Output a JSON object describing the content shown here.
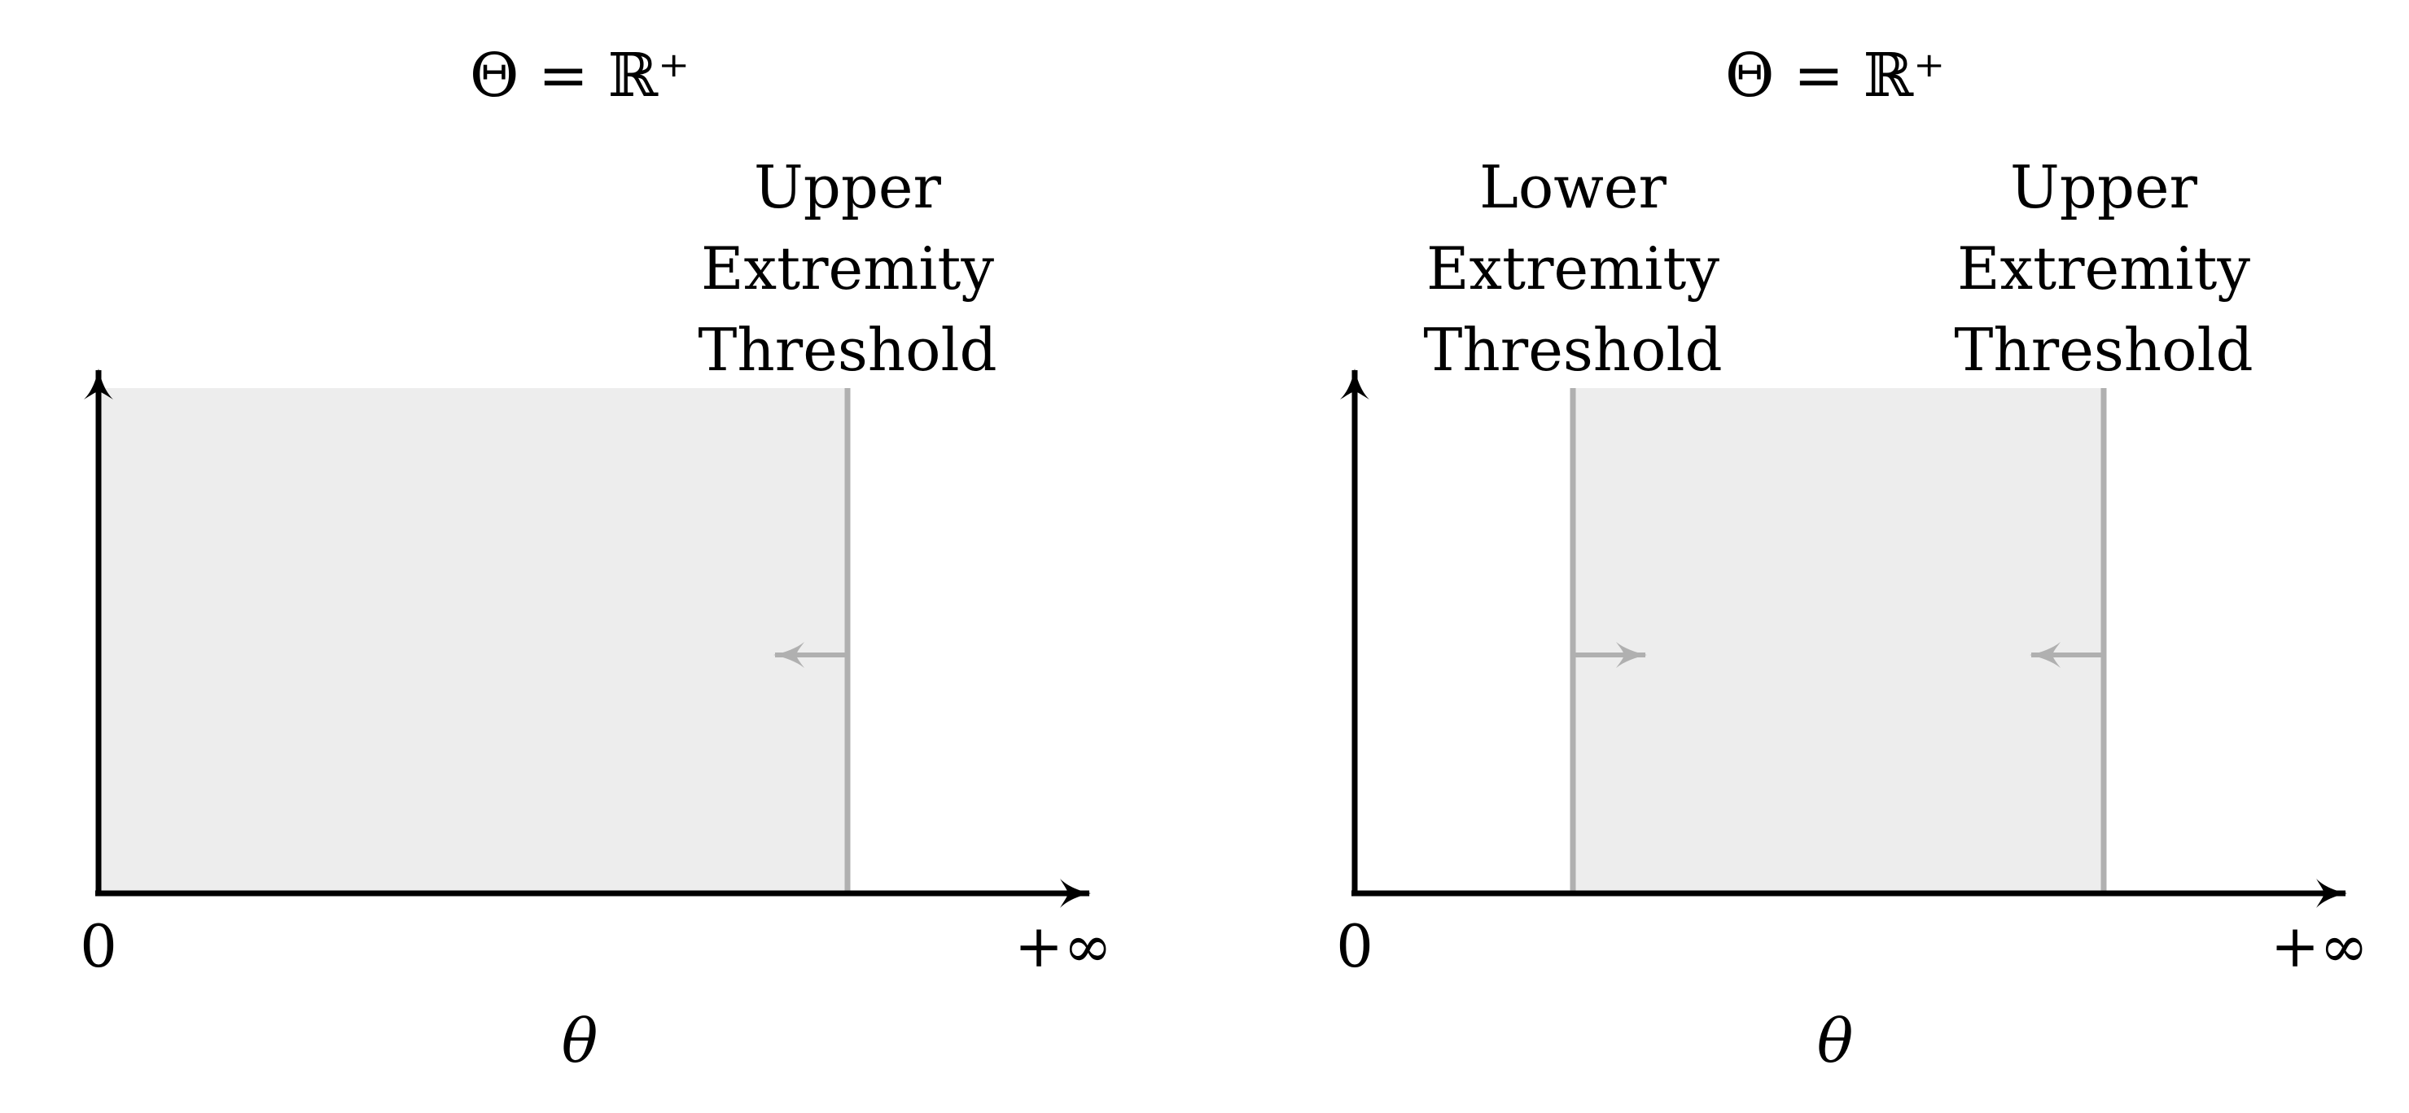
{
  "colors": {
    "background": "#ffffff",
    "axis": "#000000",
    "region_fill": "#ededed",
    "threshold_line": "#b0b0b0",
    "text": "#000000"
  },
  "panels": [
    {
      "id": "left",
      "title": "Θ = ℝ⁺",
      "x_start_label": "0",
      "x_end_label": "+∞",
      "axis_variable": "θ",
      "thresholds": [
        {
          "kind": "upper",
          "label_lines": [
            "Upper",
            "Extremity",
            "Threshold"
          ],
          "arrow_direction": "left"
        }
      ],
      "shaded_region": "from-0-to-upper-threshold"
    },
    {
      "id": "right",
      "title": "Θ = ℝ⁺",
      "x_start_label": "0",
      "x_end_label": "+∞",
      "axis_variable": "θ",
      "thresholds": [
        {
          "kind": "lower",
          "label_lines": [
            "Lower",
            "Extremity",
            "Threshold"
          ],
          "arrow_direction": "right"
        },
        {
          "kind": "upper",
          "label_lines": [
            "Upper",
            "Extremity",
            "Threshold"
          ],
          "arrow_direction": "left"
        }
      ],
      "shaded_region": "between-lower-and-upper-threshold"
    }
  ]
}
